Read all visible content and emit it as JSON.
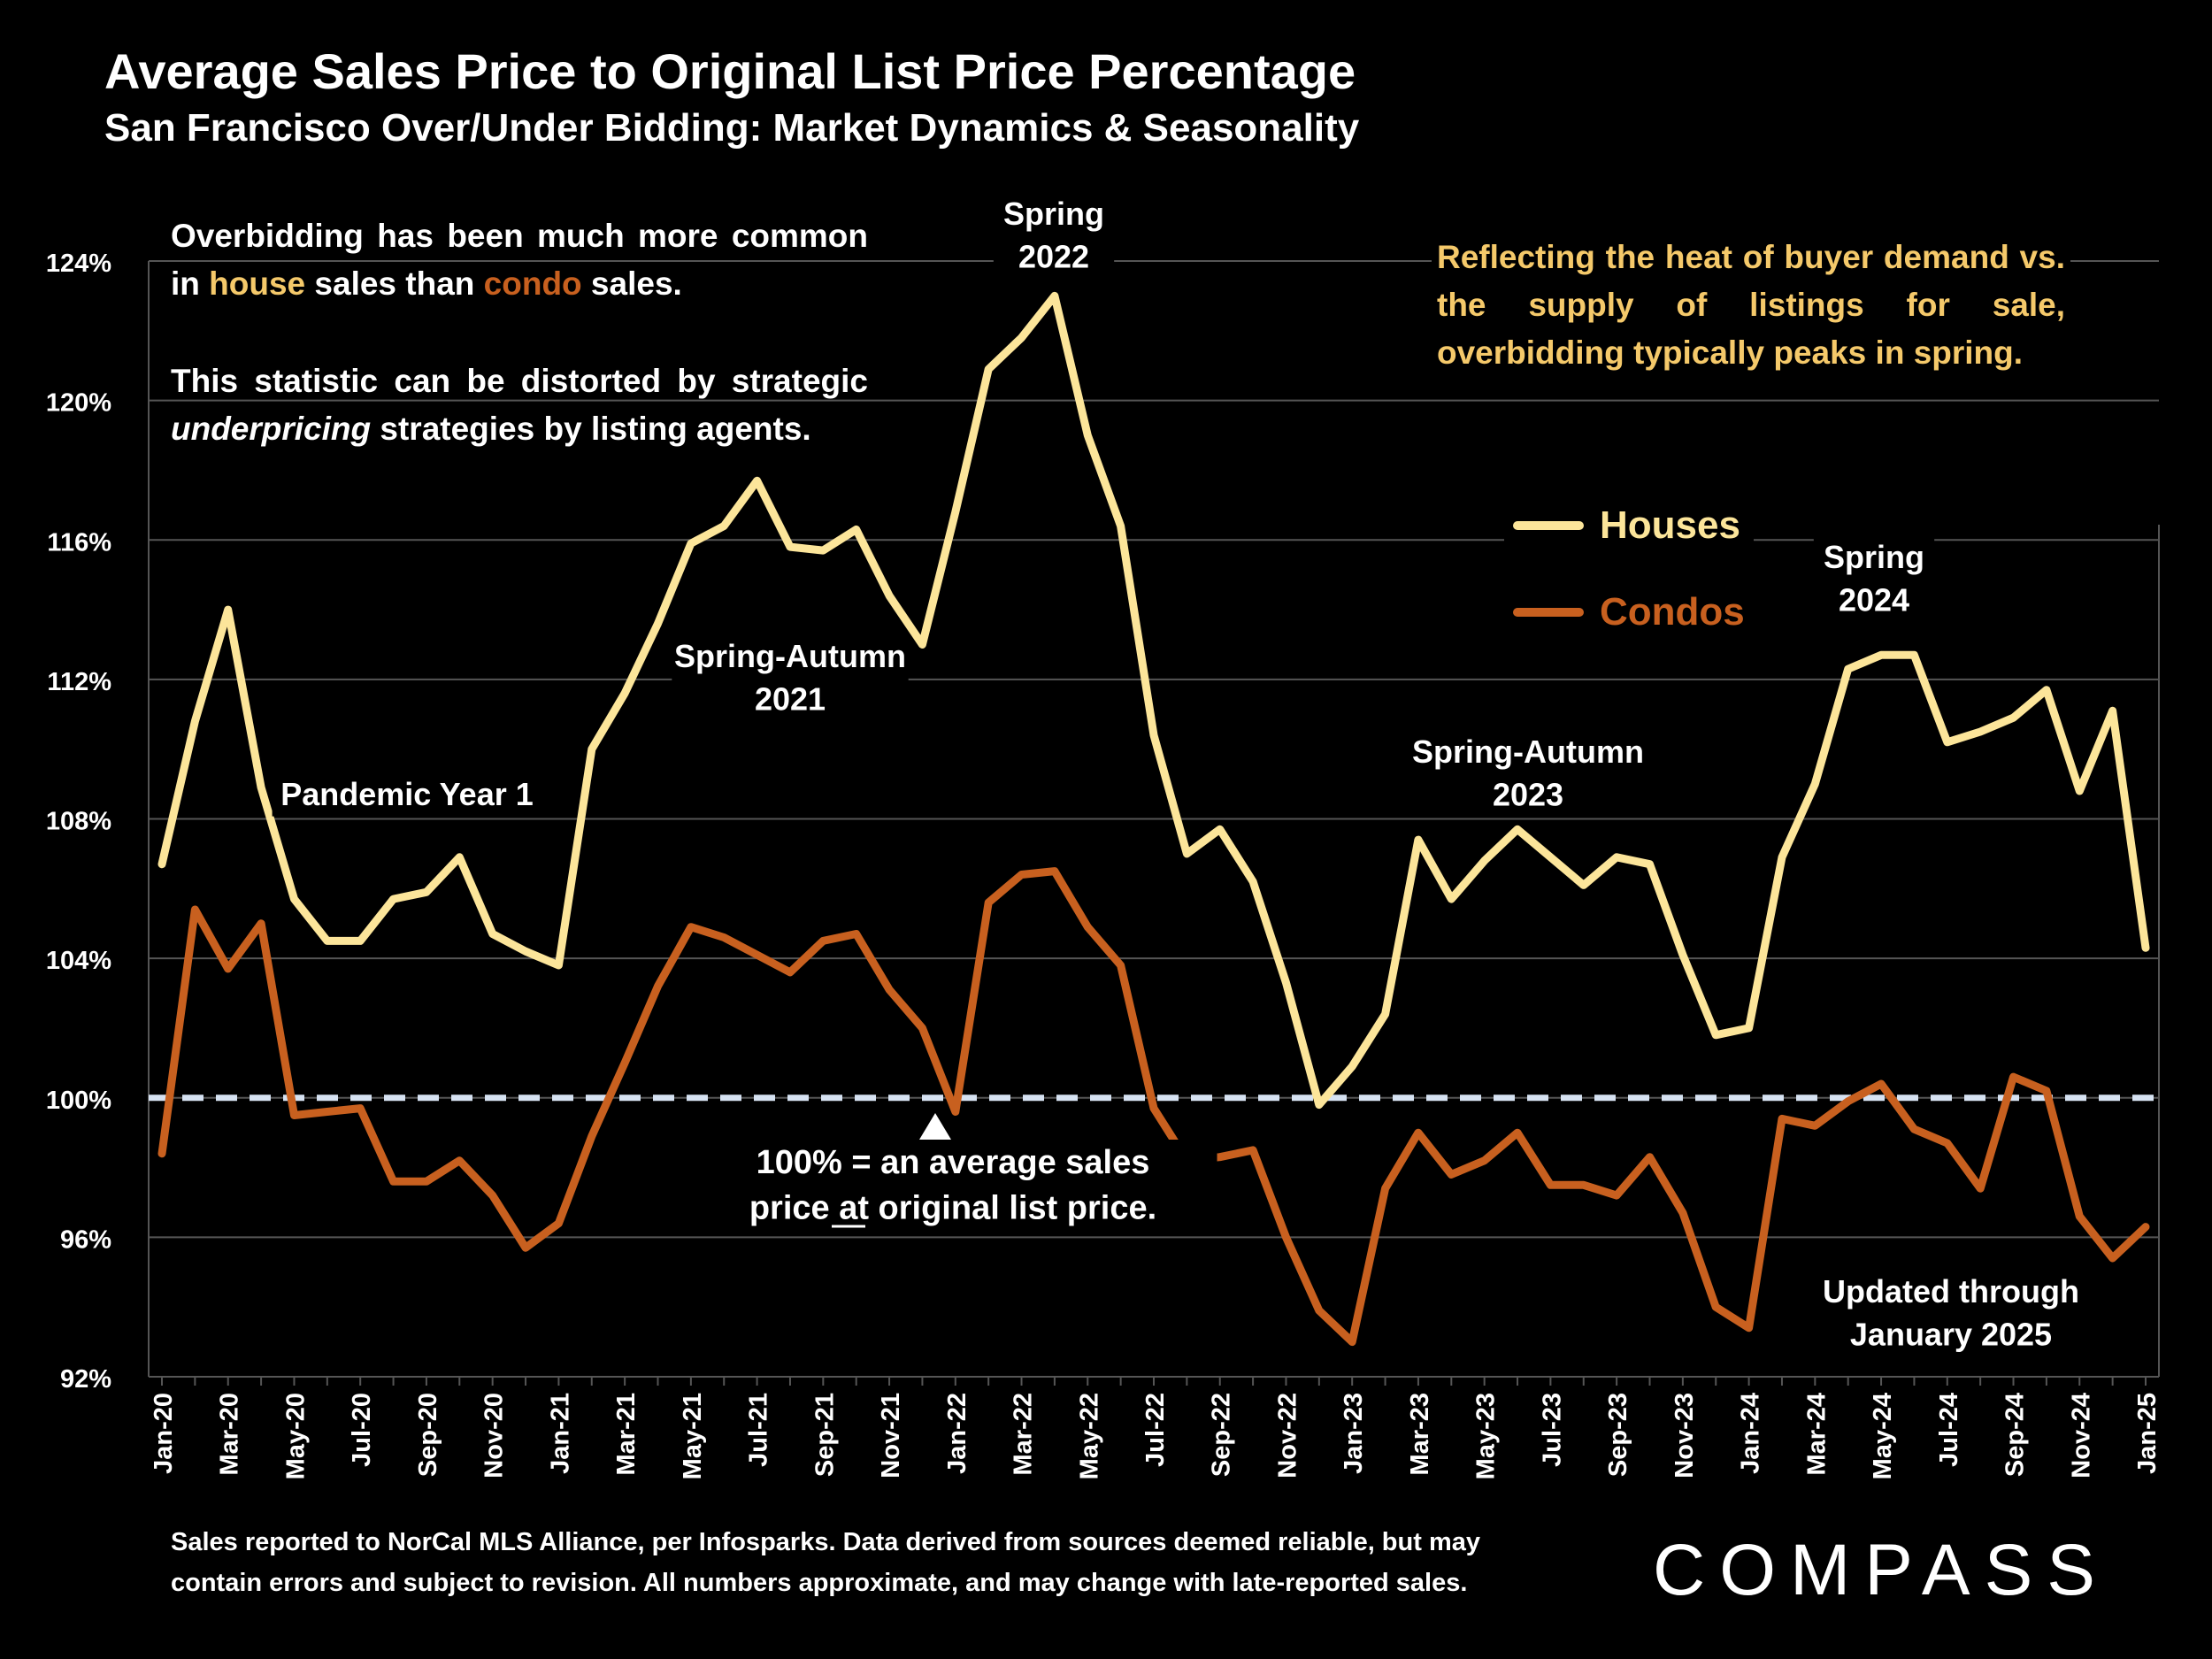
{
  "header": {
    "title": "Average Sales Price to Original List Price Percentage",
    "subtitle": "San Francisco Over/Under Bidding: Market Dynamics & Seasonality"
  },
  "notes": {
    "left_p1_a": "Overbidding has been much more common in ",
    "left_p1_house": "house",
    "left_p1_b": " sales than ",
    "left_p1_condo": "condo",
    "left_p1_c": " sales.",
    "left_p2_a": "This statistic can be distorted by strategic ",
    "left_p2_em": "underpricing",
    "left_p2_b": " strategies by listing agents.",
    "right": "Reflecting the heat of buyer demand vs. the supply of listings for sale, overbidding typically peaks in spring."
  },
  "legend": {
    "houses": "Houses",
    "condos": "Condos"
  },
  "annotations": {
    "spring_2022": [
      "Spring",
      "2022"
    ],
    "spring_autumn_2021": [
      "Spring-Autumn",
      "2021"
    ],
    "pandemic": [
      "Pandemic Year 1"
    ],
    "spring_autumn_2023": [
      "Spring-Autumn",
      "2023"
    ],
    "spring_2024": [
      "Spring",
      "2024"
    ],
    "baseline_note": [
      "100% = an average sales",
      "price at original list price."
    ],
    "updated": [
      "Updated through",
      "January 2025"
    ]
  },
  "footer": {
    "line1": "Sales reported to NorCal MLS Alliance, per Infosparks. Data derived from sources deemed reliable, but may",
    "line2": "contain errors and subject to revision. All numbers approximate, and may change with late-reported sales."
  },
  "logo": "COMPASS",
  "colors": {
    "houses": "#fce59a",
    "condos": "#c8601f",
    "accent_text": "#f5c96a",
    "baseline": "#d6e2f2",
    "grid": "#555555",
    "background": "#000000"
  },
  "chart_data": {
    "type": "line",
    "ylim": [
      92,
      124
    ],
    "yticks": [
      92,
      96,
      100,
      104,
      108,
      112,
      116,
      120,
      124
    ],
    "ytick_labels": [
      "92%",
      "96%",
      "100%",
      "104%",
      "108%",
      "112%",
      "116%",
      "120%",
      "124%"
    ],
    "reference_line": 100,
    "x": [
      "Jan-20",
      "Feb-20",
      "Mar-20",
      "Apr-20",
      "May-20",
      "Jun-20",
      "Jul-20",
      "Aug-20",
      "Sep-20",
      "Oct-20",
      "Nov-20",
      "Dec-20",
      "Jan-21",
      "Feb-21",
      "Mar-21",
      "Apr-21",
      "May-21",
      "Jun-21",
      "Jul-21",
      "Aug-21",
      "Sep-21",
      "Oct-21",
      "Nov-21",
      "Dec-21",
      "Jan-22",
      "Feb-22",
      "Mar-22",
      "Apr-22",
      "May-22",
      "Jun-22",
      "Jul-22",
      "Aug-22",
      "Sep-22",
      "Oct-22",
      "Nov-22",
      "Dec-22",
      "Jan-23",
      "Feb-23",
      "Mar-23",
      "Apr-23",
      "May-23",
      "Jun-23",
      "Jul-23",
      "Aug-23",
      "Sep-23",
      "Oct-23",
      "Nov-23",
      "Dec-23",
      "Jan-24",
      "Feb-24",
      "Mar-24",
      "Apr-24",
      "May-24",
      "Jun-24",
      "Jul-24",
      "Aug-24",
      "Sep-24",
      "Oct-24",
      "Nov-24",
      "Dec-24",
      "Jan-25"
    ],
    "xtick_labels": [
      "Jan-20",
      "Mar-20",
      "May-20",
      "Jul-20",
      "Sep-20",
      "Nov-20",
      "Jan-21",
      "Mar-21",
      "May-21",
      "Jul-21",
      "Sep-21",
      "Nov-21",
      "Jan-22",
      "Mar-22",
      "May-22",
      "Jul-22",
      "Sep-22",
      "Nov-22",
      "Jan-23",
      "Mar-23",
      "May-23",
      "Jul-23",
      "Sep-23",
      "Nov-23",
      "Jan-24",
      "Mar-24",
      "May-24",
      "Jul-24",
      "Sep-24",
      "Nov-24",
      "Jan-25"
    ],
    "series": [
      {
        "name": "Houses",
        "color": "#fce59a",
        "values": [
          106.7,
          110.8,
          114.0,
          108.9,
          105.7,
          104.5,
          104.5,
          105.7,
          105.9,
          106.9,
          104.7,
          104.2,
          103.8,
          110.0,
          111.6,
          113.6,
          115.9,
          116.4,
          117.7,
          115.8,
          115.7,
          116.3,
          114.4,
          113.0,
          116.8,
          120.9,
          121.8,
          123.0,
          119.0,
          116.4,
          110.4,
          107.0,
          107.7,
          106.2,
          103.3,
          99.8,
          100.9,
          102.4,
          107.4,
          105.7,
          106.8,
          107.7,
          106.9,
          106.1,
          106.9,
          106.7,
          104.1,
          101.8,
          102.0,
          106.9,
          109.0,
          112.3,
          112.7,
          112.7,
          110.2,
          110.5,
          110.9,
          111.7,
          108.8,
          111.1,
          104.3
        ]
      },
      {
        "name": "Condos",
        "color": "#c8601f",
        "values": [
          98.4,
          105.4,
          103.7,
          105.0,
          99.5,
          99.6,
          99.7,
          97.6,
          97.6,
          98.2,
          97.2,
          95.7,
          96.4,
          98.9,
          101.0,
          103.2,
          104.9,
          104.6,
          104.1,
          103.6,
          104.5,
          104.7,
          103.1,
          102.0,
          99.6,
          105.6,
          106.4,
          106.5,
          104.9,
          103.8,
          99.7,
          98.2,
          98.3,
          98.5,
          96.0,
          93.9,
          93.0,
          97.4,
          99.0,
          97.8,
          98.2,
          99.0,
          97.5,
          97.5,
          97.2,
          98.3,
          96.7,
          94.0,
          93.4,
          99.4,
          99.2,
          99.9,
          100.4,
          99.1,
          98.7,
          97.4,
          100.6,
          100.2,
          96.6,
          95.4,
          96.3
        ]
      }
    ]
  }
}
